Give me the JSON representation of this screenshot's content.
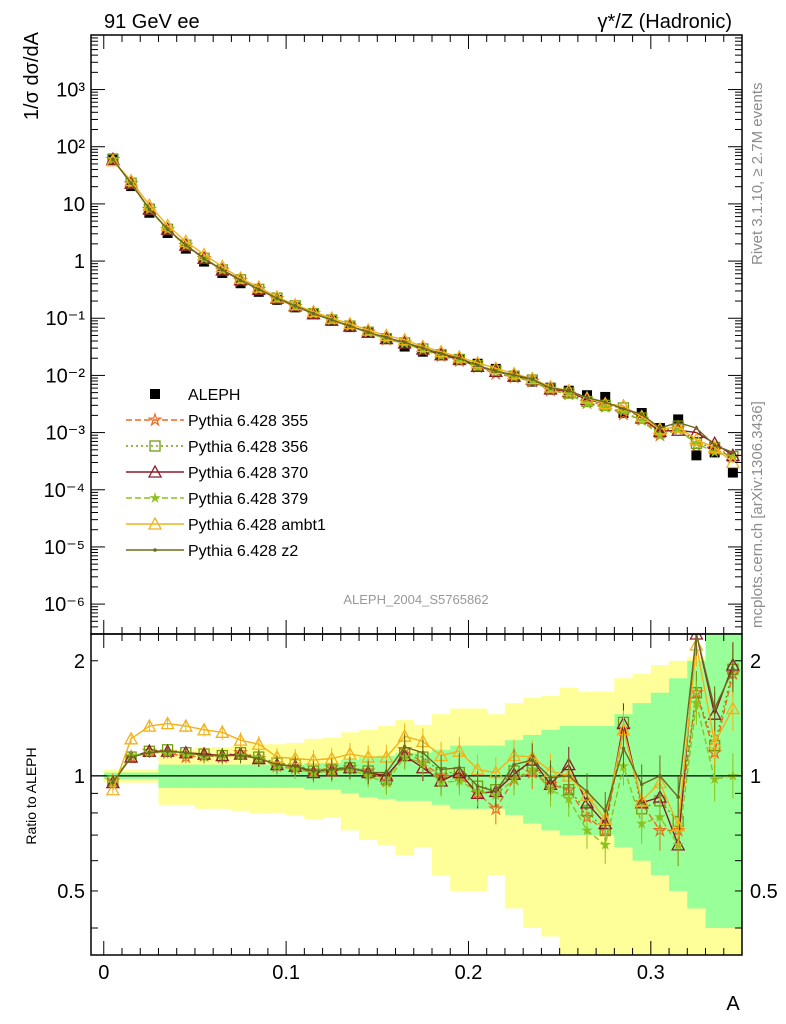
{
  "header": {
    "left_title": "91 GeV ee",
    "right_title": "γ*/Z (Hadronic)"
  },
  "side_labels": {
    "rivet": "Rivet 3.1.10, ≥ 2.7M events",
    "mcplots": "mcplots.cern.ch [arXiv:1306.3436]"
  },
  "analysis_label": "ALEPH_2004_S5765862",
  "colors": {
    "ALEPH": "#000000",
    "p355": "#ee6a1e",
    "p356": "#6f9e0c",
    "p370": "#8b1a2a",
    "p379": "#8cc21e",
    "ambt1": "#f2b21a",
    "z2": "#6b6b1e",
    "band_outer": "#ffff99",
    "band_inner": "#99ff99"
  },
  "chart_data": [
    {
      "type": "scatter",
      "title": "",
      "xlabel": "A",
      "ylabel": "1/σ dσ/dA",
      "yscale": "log",
      "ylim": [
        3e-07,
        9000
      ],
      "xlim": [
        -0.007,
        0.35
      ],
      "ytick_labels": [
        "10³",
        "10²",
        "10",
        "1",
        "10⁻¹",
        "10⁻²",
        "10⁻³",
        "10⁻⁴",
        "10⁻⁵",
        "10⁻⁶"
      ],
      "ytick_values": [
        1000,
        100,
        10,
        1,
        0.1,
        0.01,
        0.001,
        0.0001,
        1e-05,
        1e-06
      ],
      "legend_position": "bottom-left",
      "x": [
        0.005,
        0.015,
        0.025,
        0.035,
        0.045,
        0.055,
        0.065,
        0.075,
        0.085,
        0.095,
        0.105,
        0.115,
        0.125,
        0.135,
        0.145,
        0.155,
        0.165,
        0.175,
        0.185,
        0.195,
        0.205,
        0.215,
        0.225,
        0.235,
        0.245,
        0.255,
        0.265,
        0.275,
        0.285,
        0.295,
        0.305,
        0.315,
        0.325,
        0.335,
        0.345
      ],
      "series": [
        {
          "name": "ALEPH",
          "key": "ALEPH",
          "marker": "filled-square",
          "values": [
            62,
            20.5,
            7.0,
            3.1,
            1.65,
            0.98,
            0.62,
            0.41,
            0.29,
            0.21,
            0.155,
            0.118,
            0.09,
            0.07,
            0.056,
            0.045,
            0.032,
            0.026,
            0.023,
            0.019,
            0.016,
            0.013,
            0.0095,
            0.0078,
            0.0061,
            0.0054,
            0.0045,
            0.0042,
            0.0022,
            0.0022,
            0.0012,
            0.0017,
            0.0004,
            0.00045,
            0.0002
          ]
        },
        {
          "name": "Pythia 6.428 355",
          "key": "p355",
          "marker": "open-star",
          "dash": "6,3",
          "values": [
            60,
            22.5,
            8.0,
            3.55,
            1.85,
            1.1,
            0.69,
            0.46,
            0.32,
            0.22,
            0.16,
            0.12,
            0.094,
            0.073,
            0.057,
            0.043,
            0.037,
            0.028,
            0.022,
            0.018,
            0.014,
            0.0107,
            0.0093,
            0.0079,
            0.0055,
            0.0047,
            0.0033,
            0.0029,
            0.0021,
            0.0017,
            0.0009,
            0.0012,
            0.0006,
            0.00052,
            0.00037
          ]
        },
        {
          "name": "Pythia 6.428 356",
          "key": "p356",
          "marker": "open-square",
          "dash": "2,3",
          "values": [
            60,
            23,
            8.1,
            3.6,
            1.9,
            1.12,
            0.7,
            0.47,
            0.32,
            0.225,
            0.165,
            0.12,
            0.093,
            0.073,
            0.057,
            0.044,
            0.037,
            0.029,
            0.023,
            0.019,
            0.0148,
            0.012,
            0.0097,
            0.0083,
            0.0058,
            0.0049,
            0.0035,
            0.003,
            0.0027,
            0.0018,
            0.001,
            0.0013,
            0.00065,
            0.00055,
            0.00038
          ]
        },
        {
          "name": "Pythia 6.428 370",
          "key": "p370",
          "marker": "open-triangle",
          "dash": "",
          "values": [
            60,
            23,
            8.1,
            3.6,
            1.9,
            1.12,
            0.7,
            0.47,
            0.32,
            0.225,
            0.165,
            0.12,
            0.093,
            0.073,
            0.057,
            0.044,
            0.037,
            0.029,
            0.023,
            0.019,
            0.0144,
            0.0118,
            0.0097,
            0.0086,
            0.0058,
            0.0052,
            0.0038,
            0.0032,
            0.0029,
            0.0018,
            0.00105,
            0.0011,
            0.001,
            0.00065,
            0.0004
          ]
        },
        {
          "name": "Pythia 6.428 379",
          "key": "p379",
          "marker": "star",
          "dash": "6,3",
          "values": [
            60,
            22.8,
            8.0,
            3.55,
            1.88,
            1.1,
            0.7,
            0.46,
            0.32,
            0.222,
            0.163,
            0.12,
            0.092,
            0.072,
            0.056,
            0.043,
            0.036,
            0.028,
            0.022,
            0.018,
            0.0145,
            0.0116,
            0.0093,
            0.0081,
            0.0056,
            0.0047,
            0.0032,
            0.0027,
            0.0024,
            0.0016,
            0.0009,
            0.0011,
            0.00065,
            0.00045,
            0.00038
          ]
        },
        {
          "name": "Pythia 6.428 ambt1",
          "key": "ambt1",
          "marker": "open-triangle",
          "dash": "",
          "values": [
            57,
            25.5,
            9.5,
            4.2,
            2.2,
            1.3,
            0.8,
            0.5,
            0.35,
            0.235,
            0.172,
            0.13,
            0.1,
            0.08,
            0.062,
            0.05,
            0.042,
            0.032,
            0.026,
            0.021,
            0.0166,
            0.0133,
            0.0107,
            0.0088,
            0.0063,
            0.0054,
            0.004,
            0.0032,
            0.0029,
            0.0019,
            0.00115,
            0.00125,
            0.00075,
            0.00055,
            0.0003
          ]
        },
        {
          "name": "Pythia 6.428 z2",
          "key": "z2",
          "marker": "dot",
          "dash": "",
          "values": [
            60,
            23,
            8.0,
            3.6,
            1.9,
            1.1,
            0.7,
            0.46,
            0.32,
            0.224,
            0.165,
            0.121,
            0.094,
            0.073,
            0.057,
            0.046,
            0.038,
            0.03,
            0.024,
            0.02,
            0.015,
            0.0118,
            0.0102,
            0.0086,
            0.006,
            0.0054,
            0.0041,
            0.0034,
            0.0026,
            0.0021,
            0.0012,
            0.0015,
            0.0012,
            0.0006,
            0.00045
          ]
        }
      ]
    },
    {
      "type": "scatter",
      "title": "",
      "xlabel": "A",
      "ylabel": "Ratio to ALEPH",
      "yscale": "log",
      "ylim": [
        0.34,
        2.35
      ],
      "xlim": [
        -0.007,
        0.35
      ],
      "ytick_labels": [
        "0.5",
        "1",
        "2"
      ],
      "ytick_values": [
        0.5,
        1,
        2
      ],
      "xtick_labels": [
        "0",
        "0.1",
        "0.2",
        "0.3"
      ],
      "xtick_values": [
        0,
        0.1,
        0.2,
        0.3
      ],
      "reference_line": 1,
      "bands": {
        "outer": {
          "lo": [
            0.96,
            0.96,
            0.96,
            0.84,
            0.84,
            0.82,
            0.82,
            0.81,
            0.8,
            0.8,
            0.79,
            0.77,
            0.78,
            0.72,
            0.68,
            0.66,
            0.62,
            0.65,
            0.55,
            0.5,
            0.5,
            0.55,
            0.45,
            0.4,
            0.38,
            0.3,
            0.34,
            0.34,
            0.2,
            0.2,
            0.2,
            0.2,
            0.2,
            0.2,
            0.2
          ],
          "hi": [
            1.04,
            1.04,
            1.04,
            1.17,
            1.17,
            1.19,
            1.19,
            1.2,
            1.21,
            1.21,
            1.22,
            1.25,
            1.26,
            1.3,
            1.32,
            1.35,
            1.4,
            1.36,
            1.45,
            1.5,
            1.5,
            1.45,
            1.55,
            1.6,
            1.62,
            1.7,
            1.66,
            1.66,
            1.8,
            1.85,
            1.95,
            2.0,
            2.05,
            2.35,
            2.35
          ]
        },
        "inner": {
          "lo": [
            0.98,
            0.98,
            0.98,
            0.93,
            0.93,
            0.93,
            0.93,
            0.93,
            0.93,
            0.93,
            0.93,
            0.92,
            0.92,
            0.9,
            0.88,
            0.87,
            0.86,
            0.86,
            0.84,
            0.82,
            0.82,
            0.82,
            0.79,
            0.75,
            0.72,
            0.7,
            0.7,
            0.7,
            0.65,
            0.6,
            0.55,
            0.5,
            0.45,
            0.4,
            0.4
          ],
          "hi": [
            1.02,
            1.02,
            1.02,
            1.07,
            1.07,
            1.07,
            1.07,
            1.07,
            1.07,
            1.07,
            1.07,
            1.08,
            1.08,
            1.1,
            1.12,
            1.13,
            1.15,
            1.15,
            1.17,
            1.2,
            1.2,
            1.2,
            1.24,
            1.28,
            1.32,
            1.35,
            1.35,
            1.35,
            1.45,
            1.55,
            1.65,
            1.8,
            2.0,
            2.35,
            2.35
          ]
        }
      },
      "series": [
        {
          "name": "Pythia 6.428 355",
          "key": "p355",
          "marker": "open-star",
          "dash": "6,3",
          "values": [
            0.97,
            1.12,
            1.16,
            1.15,
            1.12,
            1.13,
            1.12,
            1.15,
            1.11,
            1.06,
            1.05,
            1.03,
            1.05,
            1.05,
            1.03,
            0.97,
            1.17,
            1.08,
            1.0,
            1.0,
            0.9,
            0.82,
            0.98,
            1.02,
            0.95,
            0.92,
            0.78,
            0.72,
            1.32,
            0.85,
            0.72,
            0.72,
            1.65,
            1.15,
            1.85
          ]
        },
        {
          "name": "Pythia 6.428 356",
          "key": "p356",
          "marker": "open-square",
          "dash": "2,3",
          "values": [
            0.97,
            1.12,
            1.16,
            1.17,
            1.15,
            1.14,
            1.13,
            1.15,
            1.12,
            1.08,
            1.07,
            1.03,
            1.04,
            1.05,
            1.03,
            0.98,
            1.15,
            1.12,
            1.02,
            1.02,
            0.94,
            0.92,
            1.03,
            1.06,
            0.96,
            0.92,
            0.81,
            0.72,
            1.38,
            0.82,
            0.86,
            0.76,
            1.65,
            1.2,
            1.9
          ]
        },
        {
          "name": "Pythia 6.428 370",
          "key": "p370",
          "marker": "open-triangle",
          "dash": "",
          "values": [
            0.96,
            1.12,
            1.16,
            1.16,
            1.15,
            1.14,
            1.13,
            1.14,
            1.11,
            1.07,
            1.06,
            1.02,
            1.03,
            1.05,
            1.02,
            1.0,
            1.13,
            1.05,
            0.97,
            1.02,
            0.9,
            0.91,
            1.01,
            1.1,
            0.95,
            1.07,
            0.85,
            0.75,
            1.37,
            0.85,
            0.88,
            0.66,
            2.35,
            1.45,
            1.95
          ]
        },
        {
          "name": "Pythia 6.428 379",
          "key": "p379",
          "marker": "star",
          "dash": "6,3",
          "values": [
            0.96,
            1.13,
            1.15,
            1.15,
            1.14,
            1.12,
            1.13,
            1.13,
            1.12,
            1.06,
            1.04,
            1.02,
            1.03,
            1.04,
            1.0,
            0.96,
            1.12,
            1.08,
            0.96,
            0.97,
            0.91,
            0.89,
            0.98,
            1.04,
            0.92,
            0.87,
            0.72,
            0.66,
            1.06,
            0.75,
            0.78,
            0.66,
            1.55,
            0.98,
            1.0
          ]
        },
        {
          "name": "Pythia 6.428 ambt1",
          "key": "ambt1",
          "marker": "open-triangle",
          "dash": "",
          "values": [
            0.92,
            1.25,
            1.35,
            1.37,
            1.35,
            1.32,
            1.3,
            1.24,
            1.21,
            1.12,
            1.11,
            1.1,
            1.11,
            1.14,
            1.12,
            1.12,
            1.27,
            1.23,
            1.13,
            1.16,
            1.04,
            1.02,
            1.13,
            1.12,
            1.03,
            1.0,
            0.89,
            0.77,
            1.32,
            0.86,
            0.96,
            0.74,
            2.2,
            1.22,
            1.5
          ]
        },
        {
          "name": "Pythia 6.428 z2",
          "key": "z2",
          "marker": "dot",
          "dash": "",
          "values": [
            0.96,
            1.12,
            1.15,
            1.16,
            1.15,
            1.13,
            1.13,
            1.13,
            1.11,
            1.07,
            1.06,
            1.03,
            1.04,
            1.05,
            1.02,
            1.02,
            1.19,
            1.15,
            1.04,
            1.05,
            0.94,
            0.91,
            1.07,
            1.1,
            0.99,
            1.0,
            0.91,
            0.81,
            1.18,
            0.95,
            1.0,
            0.88,
            2.35,
            1.5,
            1.9
          ]
        }
      ]
    }
  ]
}
